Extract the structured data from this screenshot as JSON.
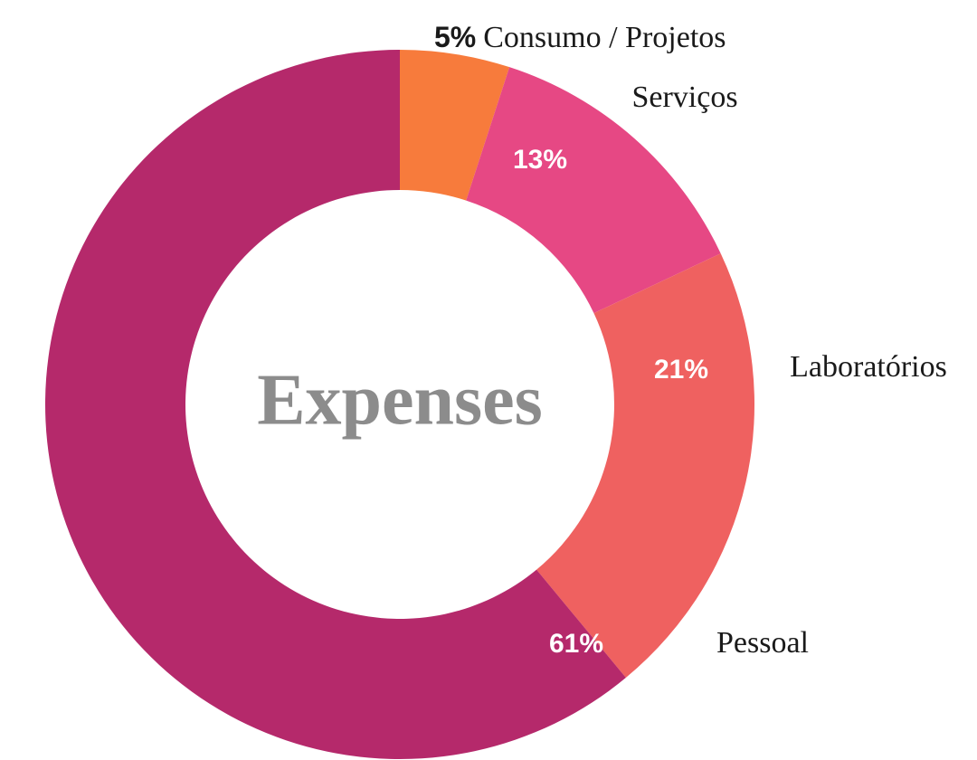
{
  "chart_data": {
    "type": "donut",
    "title": "Expenses",
    "categories": [
      "Consumo / Projetos",
      "Serviços",
      "Laboratórios",
      "Pessoal"
    ],
    "values": [
      5,
      13,
      21,
      61
    ],
    "value_labels": [
      "5%",
      "13%",
      "21%",
      "61%"
    ],
    "colors": [
      "#f77b3c",
      "#e64884",
      "#ef6160",
      "#b5296b"
    ]
  }
}
